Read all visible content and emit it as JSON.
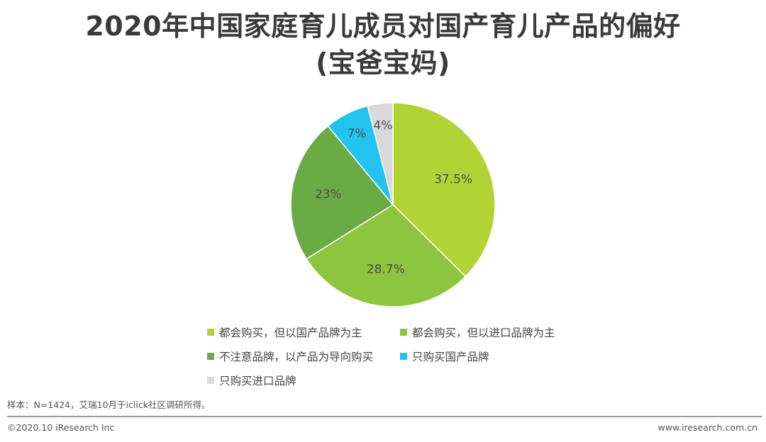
{
  "title": {
    "line1": "2020年中国家庭育儿成员对国产育儿产品的偏好",
    "line2": "(宝爸宝妈)"
  },
  "chart_data": {
    "type": "pie",
    "title": "2020年中国家庭育儿成员对国产育儿产品的偏好(宝爸宝妈)",
    "slices": [
      {
        "label": "都会购买，但以国产品牌为主",
        "value": 37.5,
        "display": "37.5%",
        "color": "#b3d233"
      },
      {
        "label": "都会购买，但以进口品牌为主",
        "value": 28.7,
        "display": "28.7%",
        "color": "#8dc53e"
      },
      {
        "label": "不注意品牌，以产品为导向购买",
        "value": 23,
        "display": "23%",
        "color": "#6bab45"
      },
      {
        "label": "只购买国产品牌",
        "value": 7,
        "display": "7%",
        "color": "#20c4ee"
      },
      {
        "label": "只购买进口品牌",
        "value": 4,
        "display": "4%",
        "color": "#d9d9d9"
      }
    ],
    "legend_position": "bottom"
  },
  "note": "样本：N=1424，艾瑞10月于iclick社区调研所得。",
  "footer": {
    "copyright": "©2020.10 iResearch Inc",
    "website": "www.iresearch.com.cn"
  }
}
